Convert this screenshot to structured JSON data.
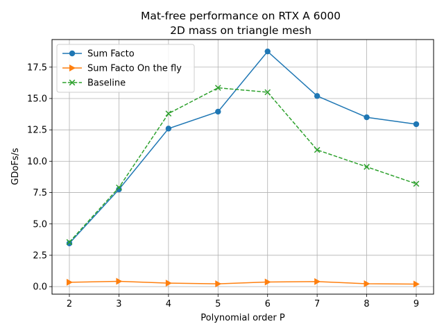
{
  "chart_data": {
    "type": "line",
    "title": "Mat-free performance on RTX A 6000",
    "subtitle": "2D mass on triangle mesh",
    "xlabel": "Polynomial order P",
    "ylabel": "GDoFs/s",
    "x": [
      2,
      3,
      4,
      5,
      6,
      7,
      8,
      9
    ],
    "xlim": [
      1.65,
      9.35
    ],
    "ylim": [
      -0.6,
      19.7
    ],
    "x_ticks": [
      "2",
      "3",
      "4",
      "5",
      "6",
      "7",
      "8",
      "9"
    ],
    "y_ticks": [
      "0.0",
      "2.5",
      "5.0",
      "7.5",
      "10.0",
      "12.5",
      "15.0",
      "17.5"
    ],
    "grid": true,
    "legend_position": "upper-left",
    "series": [
      {
        "name": "Sum Facto",
        "marker": "circle",
        "line": "solid",
        "color": "#1f77b4",
        "values": [
          3.45,
          7.75,
          12.6,
          13.95,
          18.75,
          15.2,
          13.5,
          12.95
        ]
      },
      {
        "name": "Sum Facto On the fly",
        "marker": "triangle-right",
        "line": "solid",
        "color": "#ff7f0e",
        "values": [
          0.35,
          0.42,
          0.28,
          0.22,
          0.37,
          0.4,
          0.23,
          0.2
        ]
      },
      {
        "name": "Baseline",
        "marker": "x",
        "line": "dashed",
        "color": "#2ca02c",
        "values": [
          3.55,
          7.9,
          13.8,
          15.85,
          15.5,
          10.9,
          9.55,
          8.2
        ]
      }
    ]
  }
}
